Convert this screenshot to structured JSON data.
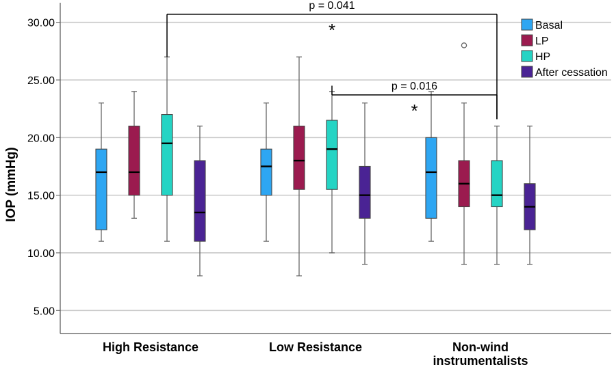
{
  "chart_data": {
    "type": "box",
    "ylabel": "IOP (mmHg)",
    "yticks": [
      "5.00",
      "10.00",
      "15.00",
      "20.00",
      "25.00",
      "30.00"
    ],
    "ylim": [
      3,
      31.7
    ],
    "grid": "horizontal",
    "legend_position": "top-right",
    "categories": [
      {
        "lines": [
          "High Resistance"
        ]
      },
      {
        "lines": [
          "Low Resistance"
        ]
      },
      {
        "lines": [
          "Non-wind",
          "instrumentalists"
        ]
      }
    ],
    "series": [
      {
        "name": "Basal",
        "color": "#2ea6f2"
      },
      {
        "name": "LP",
        "color": "#9b1b4f"
      },
      {
        "name": "HP",
        "color": "#25d4c4"
      },
      {
        "name": "After cessation",
        "color": "#4a2394"
      }
    ],
    "boxes": [
      [
        {
          "min": 11,
          "q1": 12,
          "median": 17,
          "q3": 19,
          "max": 23
        },
        {
          "min": 13,
          "q1": 15,
          "median": 17,
          "q3": 21,
          "max": 24
        },
        {
          "min": 11,
          "q1": 15,
          "median": 19.5,
          "q3": 22,
          "max": 27
        },
        {
          "min": 8,
          "q1": 11,
          "median": 13.5,
          "q3": 18,
          "max": 21
        }
      ],
      [
        {
          "min": 11,
          "q1": 15,
          "median": 17.5,
          "q3": 19,
          "max": 23
        },
        {
          "min": 8,
          "q1": 15.5,
          "median": 18,
          "q3": 21,
          "max": 27
        },
        {
          "min": 10,
          "q1": 15.5,
          "median": 19,
          "q3": 21.5,
          "max": 24
        },
        {
          "min": 9,
          "q1": 13,
          "median": 15,
          "q3": 17.5,
          "max": 23
        }
      ],
      [
        {
          "min": 11,
          "q1": 13,
          "median": 17,
          "q3": 20,
          "max": 24
        },
        {
          "min": 9,
          "q1": 14,
          "median": 16,
          "q3": 18,
          "max": 23,
          "outliers": [
            28
          ]
        },
        {
          "min": 9,
          "q1": 14,
          "median": 15,
          "q3": 18,
          "max": 21
        },
        {
          "min": 9,
          "q1": 12,
          "median": 14,
          "q3": 16,
          "max": 21
        }
      ]
    ],
    "annotations": [
      {
        "text": "p = 0.041",
        "star": "*",
        "from": [
          0,
          2
        ],
        "to": [
          2,
          2
        ],
        "y": 30.7,
        "drop": [
          27,
          21.6
        ]
      },
      {
        "text": "p = 0.016",
        "star": "*",
        "from": [
          1,
          2
        ],
        "to": [
          2,
          2
        ],
        "y": 23.7,
        "drop": [
          24.5,
          21.6
        ]
      }
    ]
  }
}
